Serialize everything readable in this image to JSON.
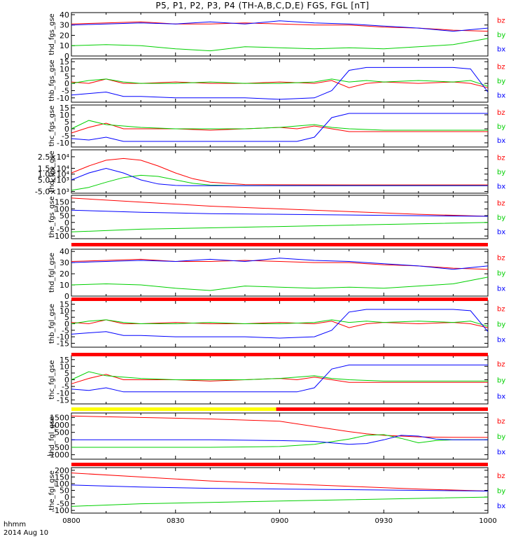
{
  "title": "P5, P1, P2, P3, P4 (TH-A,B,C,D,E) FGS, FGL [nT]",
  "time_axis": {
    "label": "hhmm",
    "date": "2014 Aug 10",
    "ticks": [
      "0800",
      "0830",
      "0900",
      "0930",
      "1000"
    ]
  },
  "colors": {
    "bz": "#ff0000",
    "by": "#00d000",
    "bx": "#0000ff",
    "flag_yellow": "#ffff00",
    "flag_red": "#ff0000"
  },
  "chart_data": [
    {
      "type": "line",
      "panel": "thd_fgs_gse",
      "ylabel": "thd_fgs_gse",
      "ylim": [
        0,
        42
      ],
      "ticks": [
        {
          "v": 40,
          "t": "40"
        },
        {
          "v": 30,
          "t": "30"
        },
        {
          "v": 20,
          "t": "20"
        },
        {
          "v": 10,
          "t": "10"
        },
        {
          "v": 0,
          "t": "0"
        }
      ],
      "x": [
        0,
        10,
        20,
        30,
        40,
        50,
        60,
        70,
        80,
        90,
        100,
        110,
        120
      ],
      "series": [
        {
          "name": "bz",
          "values": [
            31,
            32,
            33,
            31,
            31,
            32,
            31,
            30,
            30,
            28,
            27,
            25,
            24
          ]
        },
        {
          "name": "by",
          "values": [
            10,
            11,
            10,
            7,
            5,
            9,
            8,
            7,
            8,
            7,
            9,
            11,
            17
          ]
        },
        {
          "name": "bx",
          "values": [
            30,
            31,
            32,
            31,
            33,
            31,
            34,
            32,
            31,
            29,
            27,
            24,
            27
          ]
        }
      ]
    },
    {
      "type": "line",
      "panel": "thb_fgs_gse",
      "ylabel": "thb_fgs_gse",
      "ylim": [
        -13,
        17
      ],
      "ticks": [
        {
          "v": 15,
          "t": "15"
        },
        {
          "v": 10,
          "t": "10"
        },
        {
          "v": 5,
          "t": "5"
        },
        {
          "v": 0,
          "t": "0"
        },
        {
          "v": -5,
          "t": "-5"
        },
        {
          "v": -10,
          "t": "-10"
        }
      ],
      "x": [
        0,
        5,
        10,
        15,
        20,
        30,
        40,
        50,
        60,
        70,
        75,
        80,
        85,
        90,
        100,
        110,
        115,
        120
      ],
      "series": [
        {
          "name": "bz",
          "values": [
            1,
            0,
            3,
            0,
            0,
            1,
            0,
            0,
            1,
            0,
            2,
            -3,
            0,
            1,
            0,
            1,
            0,
            -3
          ]
        },
        {
          "name": "by",
          "values": [
            0,
            2,
            3,
            1,
            0,
            0,
            1,
            0,
            0,
            1,
            3,
            1,
            2,
            1,
            2,
            1,
            2,
            -2
          ]
        },
        {
          "name": "bx",
          "values": [
            -8,
            -7,
            -6,
            -9,
            -9,
            -10,
            -10,
            -10,
            -11,
            -10,
            -5,
            9,
            11,
            11,
            11,
            11,
            10,
            -6
          ]
        }
      ]
    },
    {
      "type": "line",
      "panel": "thc_fgs_gse",
      "ylabel": "thc_fgs_gse",
      "ylim": [
        -13,
        17
      ],
      "ticks": [
        {
          "v": 15,
          "t": "15"
        },
        {
          "v": 10,
          "t": "10"
        },
        {
          "v": 5,
          "t": "5"
        },
        {
          "v": 0,
          "t": "0"
        },
        {
          "v": -5,
          "t": "-5"
        },
        {
          "v": -10,
          "t": "-10"
        }
      ],
      "x": [
        0,
        5,
        10,
        15,
        20,
        30,
        40,
        50,
        60,
        65,
        70,
        75,
        80,
        90,
        100,
        110,
        120
      ],
      "series": [
        {
          "name": "bz",
          "values": [
            -3,
            1,
            4,
            0,
            0,
            0,
            -1,
            0,
            1,
            0,
            2,
            0,
            -2,
            -2,
            -2,
            -2,
            -2
          ]
        },
        {
          "name": "by",
          "values": [
            0,
            6,
            3,
            2,
            1,
            0,
            0,
            0,
            1,
            2,
            3,
            1,
            0,
            -1,
            -1,
            -1,
            -1
          ]
        },
        {
          "name": "bx",
          "values": [
            -7,
            -8,
            -6,
            -9,
            -9,
            -9,
            -9,
            -9,
            -9,
            -9,
            -6,
            8,
            11,
            11,
            11,
            11,
            11
          ]
        }
      ]
    },
    {
      "type": "line",
      "panel": "thd_fgs_gse",
      "ylabel": "thd_fgs_gse",
      "ylim": [
        -6500,
        31000
      ],
      "ticks": [
        {
          "v": 25000,
          "t": "2.5×10⁴"
        },
        {
          "v": 15000,
          "t": "1.5×10⁴"
        },
        {
          "v": 10000,
          "t": "1.0×10⁴"
        },
        {
          "v": 5000,
          "t": "5.0×10³"
        },
        {
          "v": -5000,
          "t": "-5.0×10³"
        }
      ],
      "x": [
        0,
        5,
        10,
        15,
        20,
        25,
        30,
        35,
        40,
        50,
        60,
        80,
        100,
        120
      ],
      "series": [
        {
          "name": "bz",
          "values": [
            11000,
            17000,
            22000,
            23500,
            22000,
            17000,
            11000,
            6000,
            3000,
            1000,
            800,
            700,
            700,
            700
          ]
        },
        {
          "name": "by",
          "values": [
            -4000,
            -1500,
            3000,
            7000,
            9000,
            8000,
            5000,
            2000,
            500,
            0,
            0,
            0,
            0,
            0
          ]
        },
        {
          "name": "bx",
          "values": [
            5000,
            11000,
            15000,
            11000,
            5000,
            1500,
            200,
            0,
            0,
            0,
            0,
            0,
            0,
            0
          ]
        }
      ]
    },
    {
      "type": "line",
      "panel": "the_fgs_gse",
      "ylabel": "the_fgs_gse",
      "ylim": [
        -120,
        200
      ],
      "ticks": [
        {
          "v": 150,
          "t": "150"
        },
        {
          "v": 100,
          "t": "100"
        },
        {
          "v": 50,
          "t": "50"
        },
        {
          "v": 0,
          "t": "0"
        },
        {
          "v": -50,
          "t": "-50"
        },
        {
          "v": -100,
          "t": "-100"
        }
      ],
      "x": [
        0,
        20,
        40,
        60,
        80,
        100,
        120
      ],
      "series": [
        {
          "name": "bz",
          "values": [
            180,
            150,
            120,
            100,
            80,
            60,
            45
          ]
        },
        {
          "name": "by",
          "values": [
            -70,
            -50,
            -40,
            -30,
            -20,
            -10,
            0
          ]
        },
        {
          "name": "bx",
          "values": [
            90,
            75,
            65,
            60,
            55,
            50,
            45
          ]
        }
      ]
    },
    {
      "type": "line",
      "panel": "thd_fgl_gse",
      "ylabel": "thd_fgl_gse",
      "ylim": [
        0,
        42
      ],
      "ticks": [
        {
          "v": 40,
          "t": "40"
        },
        {
          "v": 30,
          "t": "30"
        },
        {
          "v": 20,
          "t": "20"
        },
        {
          "v": 10,
          "t": "10"
        },
        {
          "v": 0,
          "t": "0"
        }
      ],
      "x": [
        0,
        10,
        20,
        30,
        40,
        50,
        60,
        70,
        80,
        90,
        100,
        110,
        120
      ],
      "series": [
        {
          "name": "bz",
          "values": [
            31,
            32,
            33,
            31,
            31,
            32,
            31,
            30,
            30,
            28,
            27,
            25,
            24
          ]
        },
        {
          "name": "by",
          "values": [
            10,
            11,
            10,
            7,
            5,
            9,
            8,
            7,
            8,
            7,
            9,
            11,
            17
          ]
        },
        {
          "name": "bx",
          "values": [
            30,
            31,
            32,
            31,
            33,
            31,
            34,
            32,
            31,
            29,
            27,
            24,
            27
          ]
        }
      ]
    },
    {
      "type": "line",
      "panel": "thb_fgl_gse",
      "ylabel": "thb_fgl_gse",
      "ylim": [
        -18,
        18
      ],
      "ticks": [
        {
          "v": 15,
          "t": "15"
        },
        {
          "v": 10,
          "t": "10"
        },
        {
          "v": 5,
          "t": "5"
        },
        {
          "v": 0,
          "t": "0"
        },
        {
          "v": -5,
          "t": "-5"
        },
        {
          "v": -10,
          "t": "-10"
        },
        {
          "v": -15,
          "t": "-15"
        }
      ],
      "x": [
        0,
        5,
        10,
        15,
        20,
        30,
        40,
        50,
        60,
        70,
        75,
        80,
        85,
        90,
        100,
        110,
        115,
        120
      ],
      "series": [
        {
          "name": "bz",
          "values": [
            1,
            0,
            3,
            0,
            0,
            1,
            0,
            0,
            1,
            0,
            2,
            -3,
            0,
            1,
            0,
            1,
            0,
            -3
          ]
        },
        {
          "name": "by",
          "values": [
            0,
            2,
            3,
            1,
            0,
            0,
            1,
            0,
            0,
            1,
            3,
            1,
            2,
            1,
            2,
            1,
            2,
            -2
          ]
        },
        {
          "name": "bx",
          "values": [
            -8,
            -7,
            -6,
            -9,
            -9,
            -10,
            -10,
            -10,
            -11,
            -10,
            -5,
            9,
            11,
            11,
            11,
            11,
            10,
            -6
          ]
        }
      ]
    },
    {
      "type": "line",
      "panel": "thc_fgl_gse",
      "ylabel": "thc_fgl_gse",
      "ylim": [
        -18,
        18
      ],
      "ticks": [
        {
          "v": 15,
          "t": "15"
        },
        {
          "v": 10,
          "t": "10"
        },
        {
          "v": 5,
          "t": "5"
        },
        {
          "v": 0,
          "t": "0"
        },
        {
          "v": -5,
          "t": "-5"
        },
        {
          "v": -10,
          "t": "-10"
        },
        {
          "v": -15,
          "t": "-15"
        }
      ],
      "x": [
        0,
        5,
        10,
        15,
        20,
        30,
        40,
        50,
        60,
        65,
        70,
        75,
        80,
        90,
        100,
        110,
        120
      ],
      "series": [
        {
          "name": "bz",
          "values": [
            -3,
            1,
            4,
            0,
            0,
            0,
            -1,
            0,
            1,
            0,
            2,
            0,
            -2,
            -2,
            -2,
            -2,
            -2
          ]
        },
        {
          "name": "by",
          "values": [
            0,
            6,
            3,
            2,
            1,
            0,
            0,
            0,
            1,
            2,
            3,
            1,
            0,
            -1,
            -1,
            -1,
            -1
          ]
        },
        {
          "name": "bx",
          "values": [
            -7,
            -8,
            -6,
            -9,
            -9,
            -9,
            -9,
            -9,
            -9,
            -9,
            -6,
            8,
            11,
            11,
            11,
            11,
            11
          ]
        }
      ]
    },
    {
      "type": "line",
      "panel": "thd_fgl_gse",
      "ylabel": "thd_fgl_gse",
      "ylim": [
        -1300,
        1800
      ],
      "ticks": [
        {
          "v": 1500,
          "t": "1500"
        },
        {
          "v": 1000,
          "t": "1000"
        },
        {
          "v": 500,
          "t": "500"
        },
        {
          "v": 0,
          "t": "0"
        },
        {
          "v": -500,
          "t": "-500"
        },
        {
          "v": -1000,
          "t": "-1000"
        }
      ],
      "x": [
        0,
        20,
        40,
        60,
        70,
        80,
        85,
        90,
        95,
        100,
        105,
        110,
        120
      ],
      "series": [
        {
          "name": "bz",
          "values": [
            1600,
            1500,
            1400,
            1250,
            900,
            550,
            400,
            300,
            250,
            200,
            180,
            170,
            160
          ]
        },
        {
          "name": "by",
          "values": [
            -500,
            -500,
            -500,
            -450,
            -300,
            50,
            300,
            350,
            100,
            -200,
            -50,
            0,
            0
          ]
        },
        {
          "name": "bx",
          "values": [
            0,
            0,
            0,
            -50,
            -100,
            -300,
            -250,
            0,
            300,
            250,
            50,
            0,
            0
          ]
        }
      ]
    },
    {
      "type": "line",
      "panel": "the_fgl_gse",
      "ylabel": "the_fgl_gse",
      "ylim": [
        -120,
        220
      ],
      "ticks": [
        {
          "v": 200,
          "t": "200"
        },
        {
          "v": 150,
          "t": "150"
        },
        {
          "v": 100,
          "t": "100"
        },
        {
          "v": 50,
          "t": "50"
        },
        {
          "v": 0,
          "t": "0"
        },
        {
          "v": -50,
          "t": "-50"
        },
        {
          "v": -100,
          "t": "-100"
        }
      ],
      "x": [
        0,
        20,
        40,
        60,
        80,
        100,
        120
      ],
      "series": [
        {
          "name": "bz",
          "values": [
            180,
            150,
            120,
            100,
            80,
            60,
            45
          ]
        },
        {
          "name": "by",
          "values": [
            -70,
            -50,
            -40,
            -30,
            -20,
            -10,
            0
          ]
        },
        {
          "name": "bx",
          "values": [
            90,
            75,
            65,
            60,
            55,
            50,
            45
          ]
        }
      ]
    }
  ],
  "flag_bars": [
    {
      "after_panel": 4,
      "segments": [
        {
          "from": 0,
          "to": 120,
          "color": "#ff0000"
        }
      ]
    },
    {
      "after_panel": 5,
      "segments": [
        {
          "from": 0,
          "to": 120,
          "color": "#ff0000"
        }
      ]
    },
    {
      "after_panel": 6,
      "segments": [
        {
          "from": 0,
          "to": 120,
          "color": "#ff0000"
        }
      ]
    },
    {
      "after_panel": 7,
      "segments": [
        {
          "from": 0,
          "to": 59,
          "color": "#ffff00"
        },
        {
          "from": 59,
          "to": 120,
          "color": "#ff0000"
        }
      ]
    },
    {
      "after_panel": 8,
      "segments": [
        {
          "from": 0,
          "to": 120,
          "color": "#ff0000"
        }
      ]
    }
  ]
}
